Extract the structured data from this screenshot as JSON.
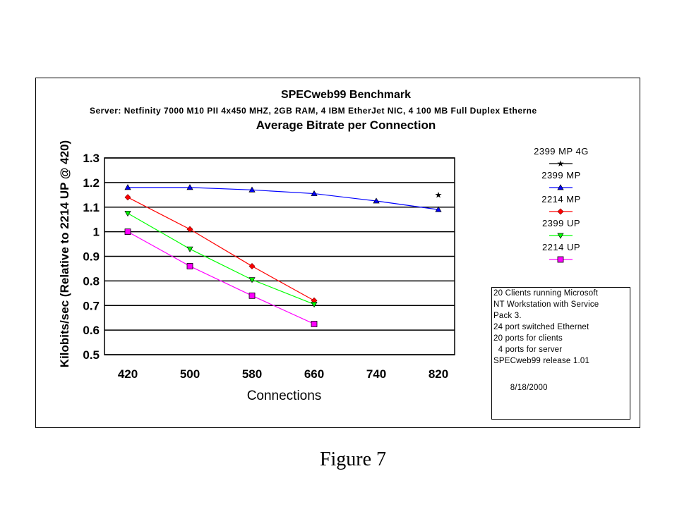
{
  "chart_data": {
    "type": "line",
    "title": "SPECweb99 Benchmark",
    "subtitle": "Server: Netfinity 7000 M10 PII 4x450 MHZ, 2GB RAM, 4 IBM EtherJet NIC, 4 100 MB Full Duplex Etherne",
    "subtitle2": "Average Bitrate per Connection",
    "xlabel": "Connections",
    "ylabel": "Kilobits/sec (Relative to 2214 UP @ 420)",
    "categories": [
      "420",
      "500",
      "580",
      "660",
      "740",
      "820"
    ],
    "ylim": [
      0.5,
      1.3
    ],
    "yticks": [
      "0.5",
      "0.6",
      "0.7",
      "0.8",
      "0.9",
      "1",
      "1.1",
      "1.2",
      "1.3"
    ],
    "grid": true,
    "legend_position": "right",
    "series": [
      {
        "name": "2399 MP 4G",
        "color": "#000000",
        "marker": "star",
        "values": [
          null,
          null,
          null,
          null,
          null,
          1.15
        ]
      },
      {
        "name": "2399 MP",
        "color": "#0000ff",
        "marker": "triangle-up",
        "values": [
          1.18,
          1.18,
          1.17,
          1.155,
          1.125,
          1.09
        ]
      },
      {
        "name": "2214 MP",
        "color": "#ff0000",
        "marker": "diamond",
        "values": [
          1.14,
          1.01,
          0.86,
          0.72,
          null,
          null
        ]
      },
      {
        "name": "2399 UP",
        "color": "#00ff00",
        "marker": "triangle-down",
        "values": [
          1.075,
          0.93,
          0.805,
          0.705,
          null,
          null
        ]
      },
      {
        "name": "2214 UP",
        "color": "#ff00ff",
        "marker": "square",
        "values": [
          1.0,
          0.86,
          0.74,
          0.625,
          null,
          null
        ]
      }
    ],
    "annotation": [
      "20 Clients running Microsoft",
      "NT Workstation with Service",
      "Pack 3.",
      "24 port switched Ethernet",
      "20 ports for clients",
      "  4 ports for server",
      "SPECweb99 release 1.01",
      "",
      "       8/18/2000"
    ]
  },
  "figure_caption": "Figure 7"
}
